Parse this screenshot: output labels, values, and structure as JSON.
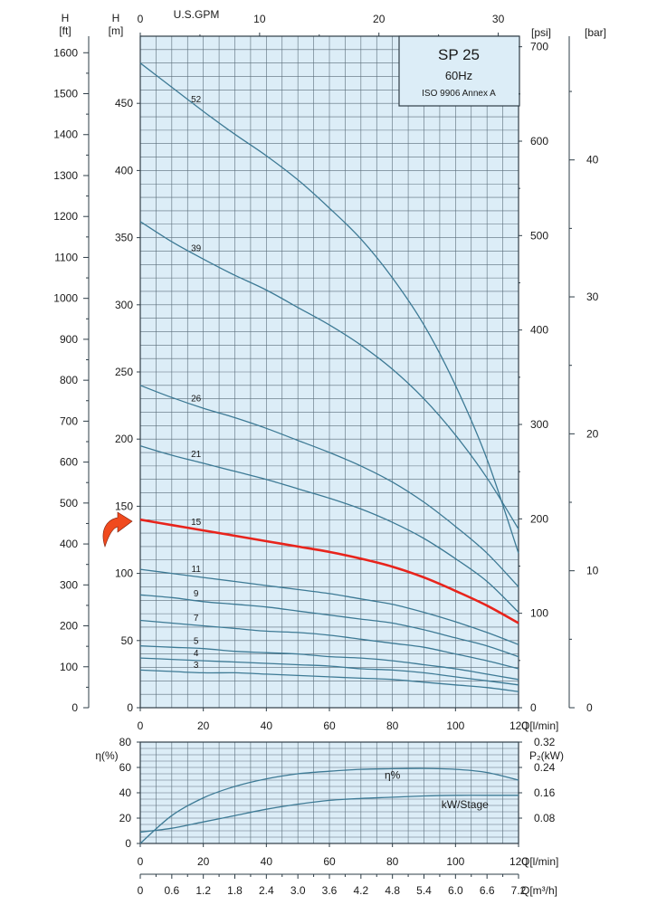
{
  "header": {
    "title": "SP 25",
    "frequency": "60Hz",
    "standard": "ISO 9906 Annex A"
  },
  "units": {
    "h_label": "H",
    "ft": "[ft]",
    "m": "[m]",
    "gpm": "U.S.GPM",
    "psi": "[psi]",
    "bar": "[bar]",
    "q_lmin": "Q[l/min]",
    "q_m3h": "Q[m³/h]",
    "eta": "η(%)",
    "p2": "P₂(kW)"
  },
  "colors": {
    "background": "#dcedf7",
    "grid": "#5a6d7a",
    "curve": "#3d7a95",
    "highlight": "#e8241c",
    "arrow": "#f04a1e"
  },
  "chart_data": [
    {
      "type": "line",
      "title": "",
      "xlabel": "Q[l/min]",
      "ylabel": "H [m]",
      "xlim": [
        0,
        120
      ],
      "ylim": [
        0,
        500
      ],
      "x_ticks": [
        "0",
        "20",
        "40",
        "60",
        "80",
        "100",
        "120"
      ],
      "y_ticks": [
        "0",
        "50",
        "100",
        "150",
        "200",
        "250",
        "300",
        "350",
        "400",
        "450"
      ],
      "x_top_ticks": [
        "0",
        "10",
        "20",
        "30"
      ],
      "y_ft_ticks": [
        "0",
        "100",
        "200",
        "300",
        "400",
        "500",
        "600",
        "700",
        "800",
        "900",
        "1000",
        "1100",
        "1200",
        "1300",
        "1400",
        "1500",
        "1600"
      ],
      "y_psi_ticks": [
        "0",
        "100",
        "200",
        "300",
        "400",
        "500",
        "600",
        "700"
      ],
      "y_bar_ticks": [
        "0",
        "10",
        "20",
        "30",
        "40"
      ],
      "grid": true,
      "highlight_series": "15",
      "series": [
        {
          "name": "52",
          "x": [
            0,
            10,
            20,
            30,
            40,
            50,
            60,
            70,
            80,
            90,
            100,
            110,
            120
          ],
          "y": [
            480,
            462,
            444,
            427,
            411,
            393,
            372,
            349,
            320,
            285,
            240,
            185,
            115
          ]
        },
        {
          "name": "39",
          "x": [
            0,
            10,
            20,
            30,
            40,
            50,
            60,
            70,
            80,
            90,
            100,
            110,
            120
          ],
          "y": [
            362,
            347,
            334,
            322,
            311,
            298,
            285,
            270,
            252,
            230,
            203,
            171,
            133
          ]
        },
        {
          "name": "26",
          "x": [
            0,
            10,
            20,
            30,
            40,
            50,
            60,
            70,
            80,
            90,
            100,
            110,
            120
          ],
          "y": [
            240,
            231,
            223,
            216,
            208,
            199,
            190,
            180,
            168,
            153,
            135,
            115,
            90
          ]
        },
        {
          "name": "21",
          "x": [
            0,
            10,
            20,
            30,
            40,
            50,
            60,
            70,
            80,
            90,
            100,
            110,
            120
          ],
          "y": [
            195,
            188,
            182,
            176,
            170,
            163,
            156,
            148,
            138,
            126,
            111,
            94,
            71
          ]
        },
        {
          "name": "15",
          "x": [
            0,
            10,
            20,
            30,
            40,
            50,
            60,
            70,
            80,
            90,
            100,
            110,
            120
          ],
          "y": [
            140,
            136,
            132,
            128,
            124,
            120,
            116,
            111,
            105,
            97,
            87,
            76,
            63
          ]
        },
        {
          "name": "11",
          "x": [
            0,
            10,
            20,
            30,
            40,
            50,
            60,
            70,
            80,
            90,
            100,
            110,
            120
          ],
          "y": [
            103,
            100,
            97,
            94,
            91,
            88,
            85,
            81,
            77,
            71,
            64,
            56,
            47
          ]
        },
        {
          "name": "9",
          "x": [
            0,
            10,
            20,
            30,
            40,
            50,
            60,
            70,
            80,
            90,
            100,
            110,
            120
          ],
          "y": [
            84,
            82,
            79,
            77,
            75,
            72,
            69,
            66,
            63,
            58,
            52,
            46,
            38
          ]
        },
        {
          "name": "7",
          "x": [
            0,
            10,
            20,
            30,
            40,
            50,
            60,
            70,
            80,
            90,
            100,
            110,
            120
          ],
          "y": [
            65,
            63,
            61,
            59,
            57,
            56,
            54,
            51,
            48,
            45,
            40,
            35,
            29
          ]
        },
        {
          "name": "5",
          "x": [
            0,
            10,
            20,
            30,
            40,
            50,
            60,
            70,
            80,
            90,
            100,
            110,
            120
          ],
          "y": [
            46,
            45,
            44,
            42,
            41,
            40,
            38,
            37,
            35,
            32,
            29,
            25,
            21
          ]
        },
        {
          "name": "4",
          "x": [
            0,
            10,
            20,
            30,
            40,
            50,
            60,
            70,
            80,
            90,
            100,
            110,
            120
          ],
          "y": [
            37,
            36,
            35,
            34,
            33,
            32,
            31,
            29,
            28,
            26,
            23,
            20,
            17
          ]
        },
        {
          "name": "3",
          "x": [
            0,
            10,
            20,
            30,
            40,
            50,
            60,
            70,
            80,
            90,
            100,
            110,
            120
          ],
          "y": [
            28,
            27,
            26,
            26,
            25,
            24,
            23,
            22,
            21,
            19,
            17,
            15,
            12
          ]
        }
      ]
    },
    {
      "type": "line",
      "title": "",
      "xlabel": "Q[l/min]",
      "ylabel": "η(%)",
      "xlim": [
        0,
        120
      ],
      "ylim": [
        0,
        80
      ],
      "x_ticks": [
        "0",
        "20",
        "40",
        "60",
        "80",
        "100",
        "120"
      ],
      "y_ticks": [
        "0",
        "20",
        "40",
        "60",
        "80"
      ],
      "y2_ticks": [
        "0.08",
        "0.16",
        "0.24",
        "0.32"
      ],
      "x_m3h_ticks": [
        "0",
        "0.6",
        "1.2",
        "1.8",
        "2.4",
        "3.0",
        "3.6",
        "4.2",
        "4.8",
        "5.4",
        "6.0",
        "6.6",
        "7.2"
      ],
      "grid": true,
      "series": [
        {
          "name": "η%",
          "x": [
            0,
            10,
            20,
            30,
            40,
            50,
            60,
            70,
            80,
            90,
            100,
            110,
            120
          ],
          "y": [
            0,
            22,
            36,
            45,
            51,
            55,
            57,
            58.5,
            59,
            59.2,
            58.5,
            56,
            50
          ]
        },
        {
          "name": "kW/Stage",
          "x": [
            0,
            10,
            20,
            30,
            40,
            50,
            60,
            70,
            80,
            90,
            100,
            110,
            120
          ],
          "y": [
            9,
            12,
            17,
            22,
            27,
            31,
            34,
            35.5,
            36.5,
            37.5,
            38,
            38,
            38
          ]
        }
      ]
    }
  ]
}
